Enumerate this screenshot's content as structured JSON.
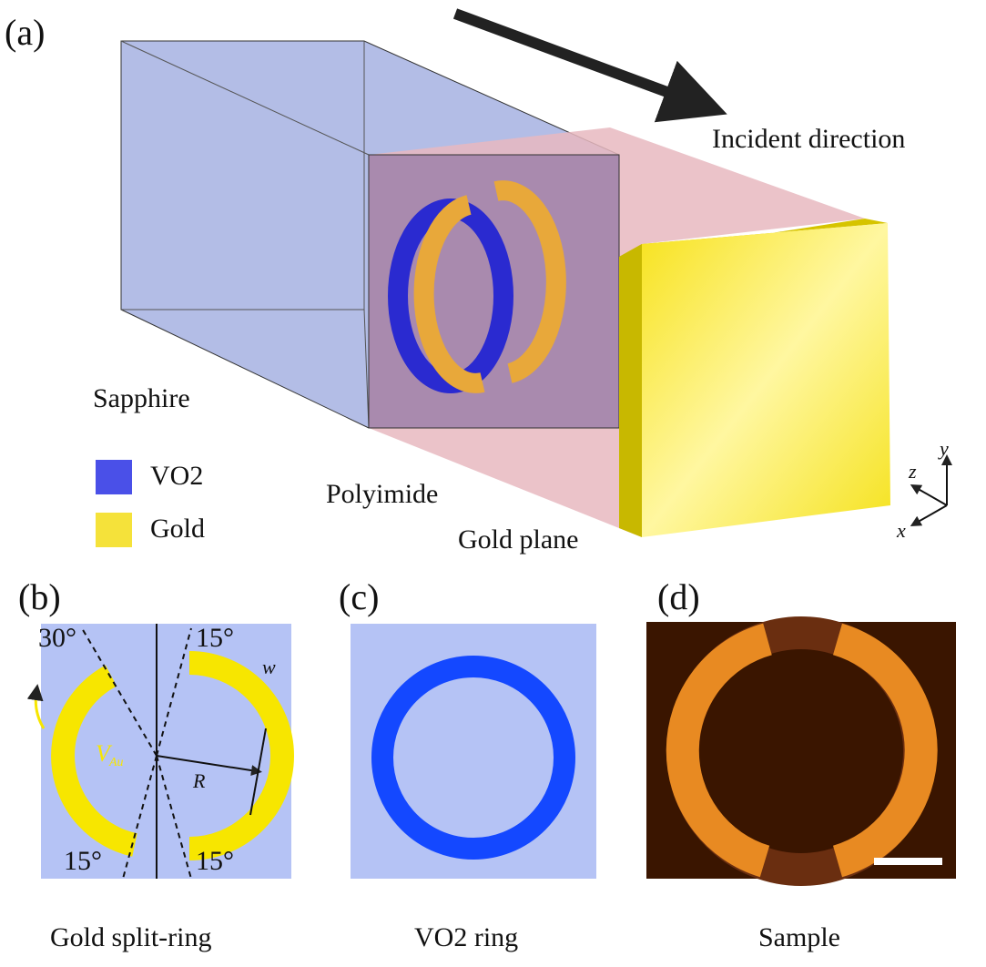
{
  "panel_a": {
    "label": "(a)",
    "incident": "Incident direction",
    "sapphire": "Sapphire",
    "polyimide": "Polyimide",
    "gold_plane": "Gold plane",
    "legend": [
      "VO2",
      "Gold"
    ],
    "axes": [
      "x",
      "y",
      "z"
    ]
  },
  "panel_b": {
    "label": "(b)",
    "angles": [
      "30°",
      "15°",
      "15°",
      "15°"
    ],
    "width": "w",
    "radius": "R",
    "velocity": "V",
    "velocity_sub": "Au",
    "caption": "Gold split-ring"
  },
  "panel_c": {
    "label": "(c)",
    "caption": "VO2 ring"
  },
  "panel_d": {
    "label": "(d)",
    "caption": "Sample"
  }
}
